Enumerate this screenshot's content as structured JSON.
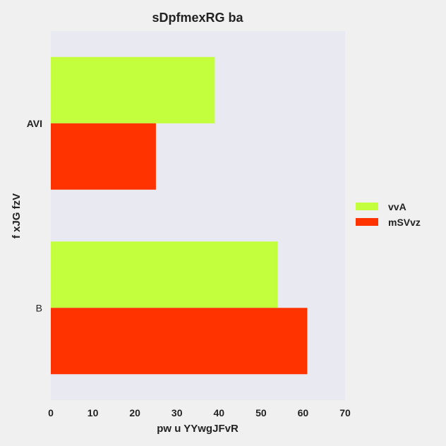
{
  "chart_data": {
    "type": "bar",
    "orientation": "horizontal",
    "title": "sDpfmexRG ba",
    "xlabel": "pw u YYwgJFvR",
    "ylabel": "f xJG fzV",
    "categories": [
      "AVI",
      "B"
    ],
    "series": [
      {
        "name": "vvA",
        "values": [
          39,
          54
        ],
        "color": "#c3ff3d"
      },
      {
        "name": "mSVvz",
        "values": [
          25,
          61
        ],
        "color": "#ff3300"
      }
    ],
    "xlim": [
      0,
      70
    ],
    "xticks": [
      0,
      10,
      20,
      30,
      40,
      50,
      60,
      70
    ],
    "grid": false,
    "legend_position": "right",
    "plot_background": "#e9e9f1"
  }
}
